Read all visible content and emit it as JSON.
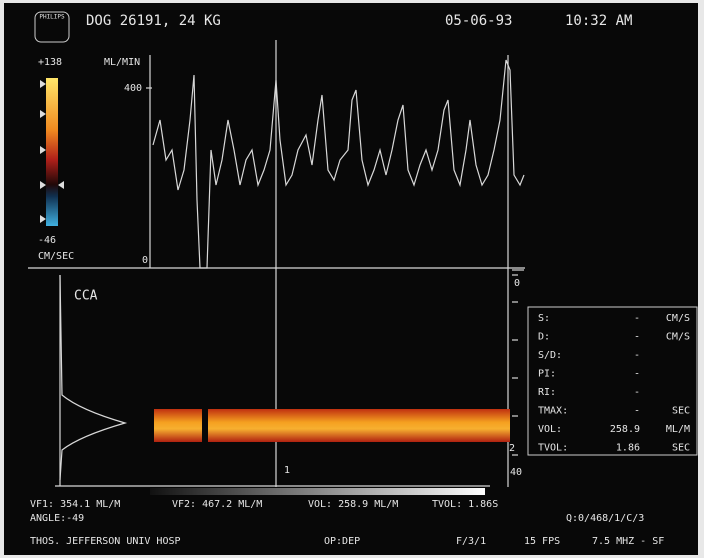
{
  "header": {
    "logo": "PHILIPS",
    "patient": "DOG 26191, 24 KG",
    "date": "05-06-93",
    "time": "10:32 AM"
  },
  "color_bar": {
    "max": "+138",
    "min": "-46",
    "unit": "CM/SEC"
  },
  "flow_trace": {
    "unit": "ML/MIN",
    "tick_high": "400",
    "tick_low": "0"
  },
  "spectrum": {
    "label": "CCA",
    "scale_top": "0",
    "scale_mid": "2",
    "scale_bottom": "40",
    "cursor": "1"
  },
  "measurements": {
    "rows": [
      [
        "S:",
        "-",
        "CM/S"
      ],
      [
        "D:",
        "-",
        "CM/S"
      ],
      [
        "S/D:",
        "-",
        ""
      ],
      [
        "PI:",
        "-",
        ""
      ],
      [
        "RI:",
        "-",
        ""
      ],
      [
        "TMAX:",
        "-",
        "SEC"
      ],
      [
        "VOL:",
        "258.9",
        "ML/M"
      ],
      [
        "TVOL:",
        "1.86",
        "SEC"
      ]
    ]
  },
  "footer": {
    "vf1": "VF1: 354.1 ML/M",
    "vf2": "VF2: 467.2 ML/M",
    "vol": "VOL: 258.9 ML/M",
    "tvol": "TVOL: 1.86S",
    "angle": "ANGLE:-49",
    "preset": "Q:0/468/1/C/3",
    "site": "THOS. JEFFERSON UNIV HOSP",
    "operator": "OP:DEP",
    "frame": "F/3/1",
    "fps": "15 FPS",
    "probe": "7.5 MHZ - SF"
  }
}
